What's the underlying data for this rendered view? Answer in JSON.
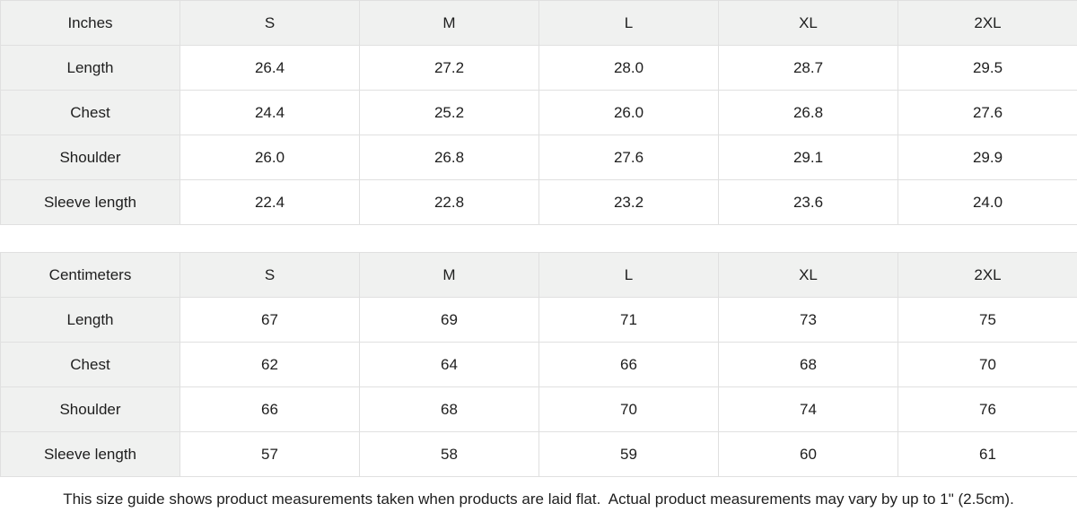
{
  "tables": {
    "inches": {
      "unit_label": "Inches",
      "sizes": [
        "S",
        "M",
        "L",
        "XL",
        "2XL"
      ],
      "rows": [
        {
          "label": "Length",
          "values": [
            "26.4",
            "27.2",
            "28.0",
            "28.7",
            "29.5"
          ]
        },
        {
          "label": "Chest",
          "values": [
            "24.4",
            "25.2",
            "26.0",
            "26.8",
            "27.6"
          ]
        },
        {
          "label": "Shoulder",
          "values": [
            "26.0",
            "26.8",
            "27.6",
            "29.1",
            "29.9"
          ]
        },
        {
          "label": "Sleeve length",
          "values": [
            "22.4",
            "22.8",
            "23.2",
            "23.6",
            "24.0"
          ]
        }
      ]
    },
    "centimeters": {
      "unit_label": "Centimeters",
      "sizes": [
        "S",
        "M",
        "L",
        "XL",
        "2XL"
      ],
      "rows": [
        {
          "label": "Length",
          "values": [
            "67",
            "69",
            "71",
            "73",
            "75"
          ]
        },
        {
          "label": "Chest",
          "values": [
            "62",
            "64",
            "66",
            "68",
            "70"
          ]
        },
        {
          "label": "Shoulder",
          "values": [
            "66",
            "68",
            "70",
            "74",
            "76"
          ]
        },
        {
          "label": "Sleeve length",
          "values": [
            "57",
            "58",
            "59",
            "60",
            "61"
          ]
        }
      ]
    }
  },
  "footer": {
    "note": "This size guide shows product measurements taken when products are laid flat.  Actual product measurements may vary by up to 1\" (2.5cm)."
  },
  "colors": {
    "header_bg": "#f0f1f0",
    "border": "#e0e0e0",
    "text": "#1e1e1e",
    "cell_bg": "#ffffff"
  }
}
